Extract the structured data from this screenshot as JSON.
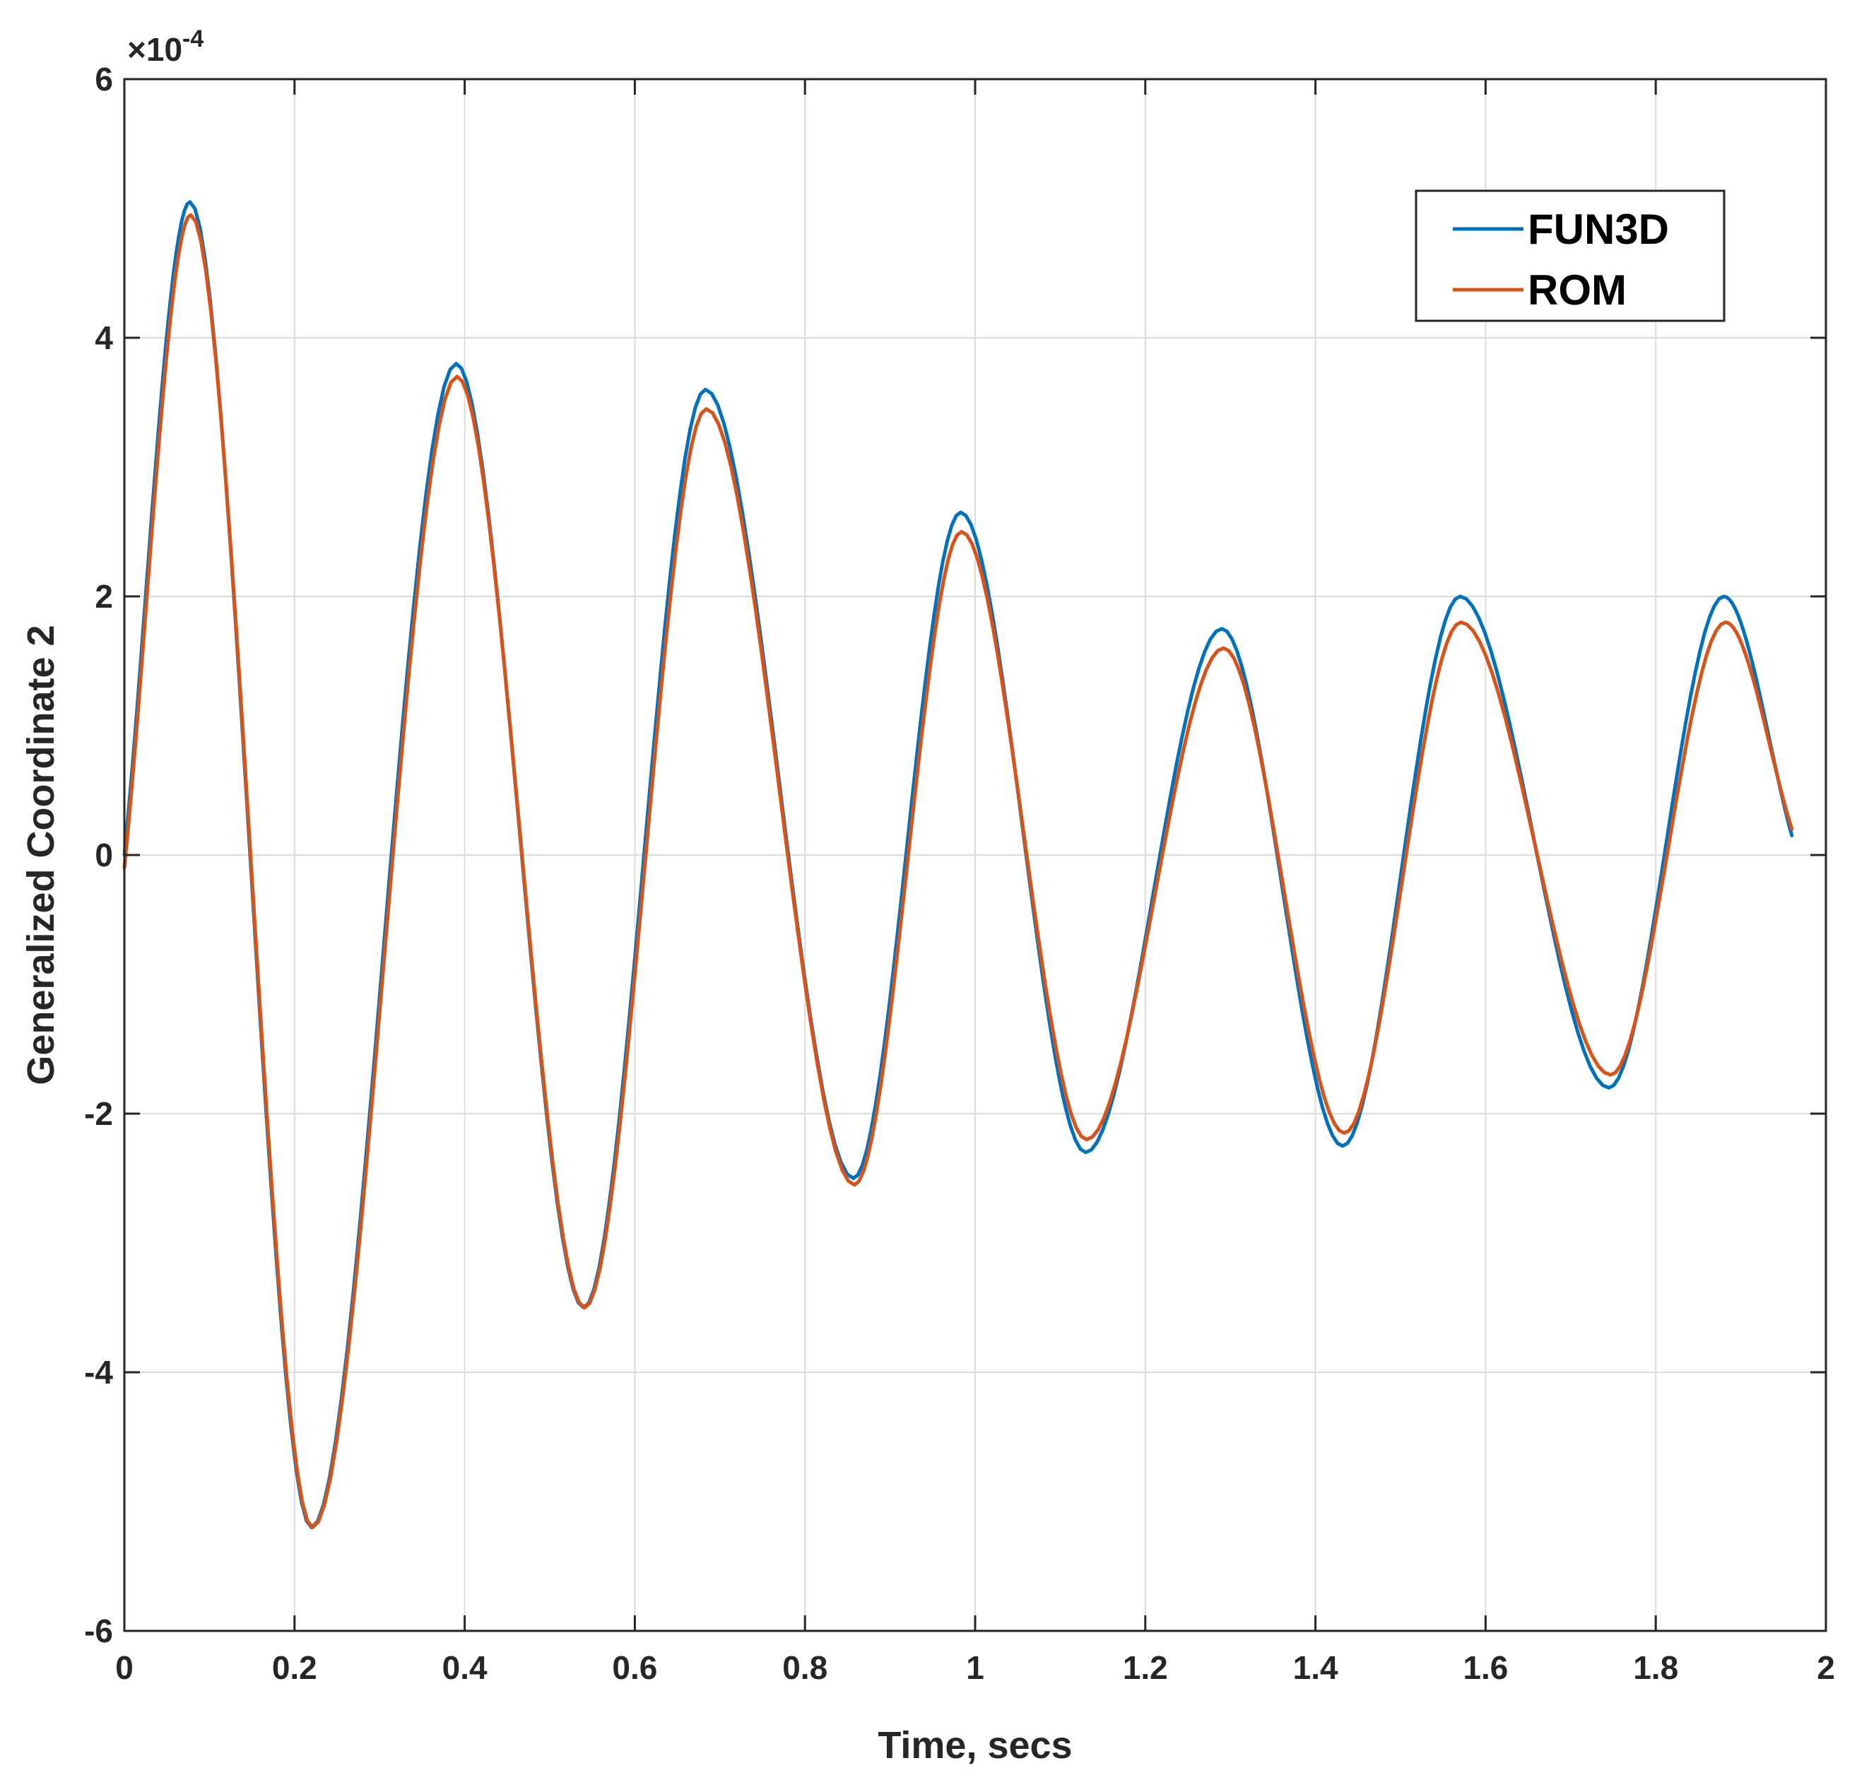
{
  "chart_data": {
    "type": "line",
    "title": "",
    "xlabel": "Time, secs",
    "ylabel": "Generalized Coordinate 2",
    "xlim": [
      0,
      2
    ],
    "ylim": [
      -6,
      6
    ],
    "y_exponent_label": "×10",
    "y_exponent_power": "-4",
    "x_ticks": [
      "0",
      "0.2",
      "0.4",
      "0.6",
      "0.8",
      "1",
      "1.2",
      "1.4",
      "1.6",
      "1.8",
      "2"
    ],
    "y_ticks": [
      "-6",
      "-4",
      "-2",
      "0",
      "2",
      "4",
      "6"
    ],
    "grid": true,
    "legend_position": "top-right",
    "series": [
      {
        "name": "FUN3D",
        "color": "#0072BD",
        "x": [
          0.0,
          0.077,
          0.22,
          0.39,
          0.54,
          0.683,
          0.857,
          0.983,
          1.13,
          1.29,
          1.432,
          1.57,
          1.745,
          1.88,
          1.96
        ],
        "y": [
          0.0,
          5.05,
          -5.2,
          3.8,
          -3.5,
          3.6,
          -2.5,
          2.65,
          -2.3,
          1.75,
          -2.25,
          2.0,
          -1.8,
          2.0,
          0.15
        ]
      },
      {
        "name": "ROM",
        "color": "#D95319",
        "x": [
          0.0,
          0.078,
          0.221,
          0.391,
          0.541,
          0.684,
          0.858,
          0.984,
          1.131,
          1.292,
          1.434,
          1.571,
          1.747,
          1.882,
          1.96
        ],
        "y": [
          -0.1,
          4.95,
          -5.2,
          3.7,
          -3.5,
          3.45,
          -2.55,
          2.5,
          -2.2,
          1.6,
          -2.15,
          1.8,
          -1.7,
          1.8,
          0.2
        ]
      }
    ]
  }
}
